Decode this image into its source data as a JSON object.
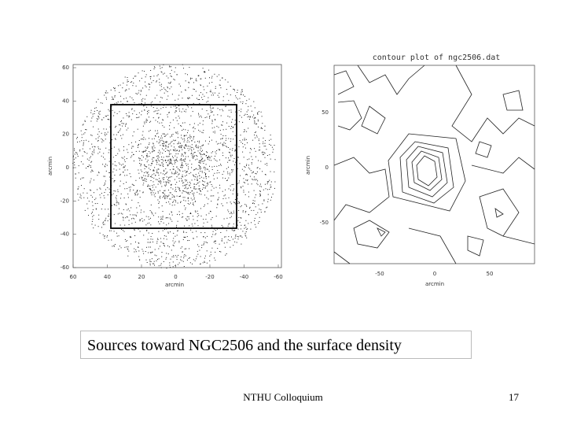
{
  "slide": {
    "left_plot": {
      "yticks": [
        "60",
        "40",
        "20",
        "0",
        "-20",
        "-40",
        "-60"
      ],
      "xticks": [
        "60",
        "40",
        "20",
        "0",
        "-20",
        "-40",
        "-60"
      ],
      "x_label": "arcmin",
      "y_label": "arcmin"
    },
    "right_plot": {
      "title": "contour plot of ngc2506.dat",
      "yticks": [
        "50",
        "0",
        "-50"
      ],
      "xticks": [
        "-50",
        "0",
        "50"
      ],
      "x_label": "arcmin",
      "y_label": "arcmin"
    },
    "caption": "Sources toward NGC2506 and the surface density",
    "footer": "NTHU Colloquium",
    "page_number": "17"
  }
}
